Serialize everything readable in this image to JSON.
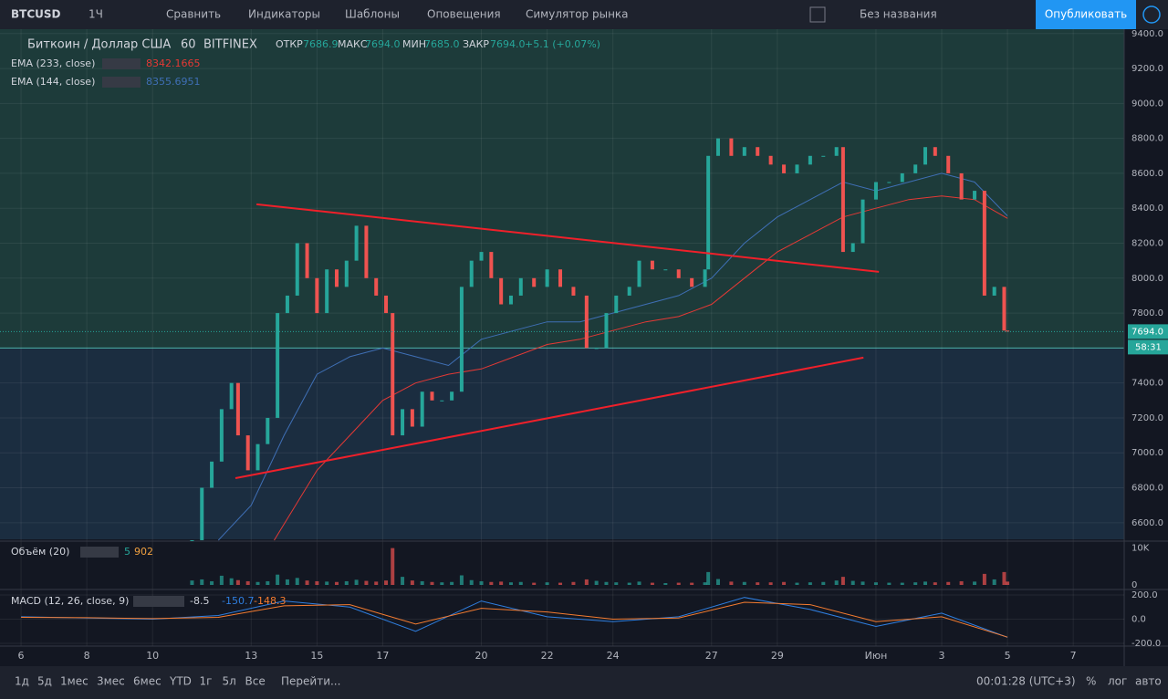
{
  "toolbar": {
    "symbol": "BTCUSD",
    "interval": "1Ч",
    "buttons": [
      "Сравнить",
      "Индикаторы",
      "Шаблоны",
      "Оповещения",
      "Симулятор рынка"
    ],
    "layout_name": "Без названия",
    "publish": "Опубликовать"
  },
  "legend": {
    "title": "Биткоин / Доллар США",
    "interval": "60",
    "exchange": "BITFINEX",
    "ohlc": [
      {
        "label": "ОТКР",
        "value": "7686.9"
      },
      {
        "label": "МАКС",
        "value": "7694.0"
      },
      {
        "label": "МИН",
        "value": "7685.0"
      },
      {
        "label": "ЗАКР",
        "value": "7694.0"
      }
    ],
    "change": "+5.1 (+0.07%)"
  },
  "chart_data": {
    "type": "candlestick",
    "xlim": [
      -0.64,
      33.55
    ],
    "ylim": [
      6505,
      9425
    ],
    "xticks": [
      {
        "value": 0,
        "label": "6"
      },
      {
        "value": 2,
        "label": "8"
      },
      {
        "value": 4,
        "label": "10"
      },
      {
        "value": 7,
        "label": "13"
      },
      {
        "value": 9,
        "label": "15"
      },
      {
        "value": 11,
        "label": "17"
      },
      {
        "value": 14,
        "label": "20"
      },
      {
        "value": 16,
        "label": "22"
      },
      {
        "value": 18,
        "label": "24"
      },
      {
        "value": 21,
        "label": "27"
      },
      {
        "value": 23,
        "label": "29"
      },
      {
        "value": 26,
        "label": "Июн"
      },
      {
        "value": 28,
        "label": "3"
      },
      {
        "value": 30,
        "label": "5"
      },
      {
        "value": 32,
        "label": "7"
      }
    ],
    "yticks": [
      {
        "value": 9400,
        "label": "9400.0"
      },
      {
        "value": 9200,
        "label": "9200.0"
      },
      {
        "value": 9000,
        "label": "9000.0"
      },
      {
        "value": 8800,
        "label": "8800.0"
      },
      {
        "value": 8600,
        "label": "8600.0"
      },
      {
        "value": 8400,
        "label": "8400.0"
      },
      {
        "value": 8200,
        "label": "8200.0"
      },
      {
        "value": 8000,
        "label": "8000.0"
      },
      {
        "value": 7800,
        "label": "7800.0"
      },
      {
        "value": 7600,
        "label": "7600.0"
      },
      {
        "value": 7400,
        "label": "7400.0"
      },
      {
        "value": 7200,
        "label": "7200.0"
      },
      {
        "value": 7000,
        "label": "7000.0"
      },
      {
        "value": 6800,
        "label": "6800.0"
      },
      {
        "value": 6600,
        "label": "6600.0"
      }
    ],
    "grid": true,
    "up_color": "#26a69a",
    "down_color": "#ef5350",
    "zone_level": 7600,
    "zone_colors": [
      "#1d3b3a",
      "#1b2d40"
    ],
    "last_price": {
      "value": 7694,
      "label": "7694.0"
    },
    "countdown": "58:31",
    "x": [
      5.2,
      5.5,
      5.8,
      6.1,
      6.4,
      6.6,
      6.9,
      7.2,
      7.5,
      7.8,
      8.1,
      8.4,
      8.7,
      9.0,
      9.3,
      9.6,
      9.9,
      10.2,
      10.5,
      10.8,
      11.1,
      11.3,
      11.6,
      11.9,
      12.2,
      12.5,
      12.8,
      13.1,
      13.4,
      13.7,
      14.0,
      14.3,
      14.6,
      14.9,
      15.2,
      15.6,
      16.0,
      16.4,
      16.8,
      17.2,
      17.5,
      17.8,
      18.1,
      18.5,
      18.8,
      19.2,
      19.6,
      20.0,
      20.4,
      20.8,
      20.9,
      21.2,
      21.6,
      22.0,
      22.4,
      22.8,
      23.2,
      23.6,
      24.0,
      24.4,
      24.8,
      25.0,
      25.3,
      25.6,
      26.0,
      26.4,
      26.8,
      27.2,
      27.5,
      27.8,
      28.2,
      28.6,
      29.0,
      29.3,
      29.6,
      29.9,
      30.0
    ],
    "values": [
      6500,
      6800,
      6950,
      7250,
      7400,
      7100,
      6900,
      7050,
      7200,
      7800,
      7900,
      8200,
      8000,
      7800,
      8050,
      7950,
      8100,
      8300,
      8000,
      7900,
      7800,
      7100,
      7250,
      7150,
      7350,
      7300,
      7300,
      7350,
      7950,
      8100,
      8150,
      8000,
      7850,
      7900,
      8000,
      7950,
      8050,
      7950,
      7900,
      7600,
      7600,
      7800,
      7900,
      7950,
      8100,
      8050,
      8050,
      8000,
      7950,
      8050,
      8700,
      8800,
      8700,
      8750,
      8700,
      8650,
      8600,
      8650,
      8700,
      8700,
      8750,
      8150,
      8200,
      8450,
      8550,
      8550,
      8600,
      8650,
      8750,
      8700,
      8600,
      8450,
      8500,
      7900,
      7950,
      7700,
      7694
    ],
    "volume": {
      "name": "Объём (20)",
      "ylim": [
        0,
        10.9
      ],
      "yticks": [
        {
          "value": 10,
          "label": "10K"
        },
        0
      ],
      "last_label": "5",
      "last": 902,
      "values": [
        1.2,
        1.5,
        1.0,
        2.5,
        1.8,
        1.3,
        1.0,
        0.8,
        1.0,
        2.8,
        1.5,
        1.9,
        1.2,
        1.0,
        0.9,
        0.8,
        1.0,
        1.4,
        1.1,
        0.9,
        1.2,
        10.0,
        2.2,
        1.2,
        1.0,
        0.8,
        0.7,
        0.8,
        2.6,
        1.3,
        1.0,
        0.8,
        0.9,
        0.7,
        0.8,
        0.6,
        0.7,
        0.6,
        0.8,
        1.5,
        1.1,
        0.8,
        0.7,
        0.6,
        0.9,
        0.6,
        0.5,
        0.6,
        0.6,
        0.7,
        3.5,
        1.6,
        0.9,
        0.8,
        0.7,
        0.7,
        0.8,
        0.6,
        0.7,
        0.8,
        1.2,
        2.2,
        1.1,
        0.9,
        0.7,
        0.6,
        0.6,
        0.7,
        0.9,
        0.7,
        0.8,
        1.0,
        0.9,
        3.0,
        1.5,
        3.5,
        0.902
      ]
    },
    "ema": [
      {
        "name": "EMA (233, close)",
        "last": 8342.1665,
        "color": "#e53935",
        "x": [
          7.7,
          9,
          10,
          11,
          12,
          13,
          14,
          15,
          16,
          17,
          18,
          19,
          20,
          21,
          22,
          23,
          24,
          25,
          26,
          27,
          28,
          29,
          30
        ],
        "values": [
          6500,
          6900,
          7100,
          7300,
          7400,
          7450,
          7480,
          7550,
          7620,
          7650,
          7700,
          7750,
          7780,
          7850,
          8000,
          8150,
          8250,
          8350,
          8400,
          8450,
          8470,
          8450,
          8342
        ]
      },
      {
        "name": "EMA (144, close)",
        "last": 8355.6951,
        "color": "#3f6fb5",
        "x": [
          6,
          7,
          8,
          9,
          10,
          11,
          12,
          13,
          14,
          15,
          16,
          17,
          18,
          19,
          20,
          21,
          22,
          23,
          24,
          25,
          26,
          27,
          28,
          29,
          30
        ],
        "values": [
          6500,
          6700,
          7100,
          7450,
          7550,
          7600,
          7550,
          7500,
          7650,
          7700,
          7750,
          7750,
          7800,
          7850,
          7900,
          8000,
          8200,
          8350,
          8450,
          8550,
          8500,
          8550,
          8600,
          8550,
          8356
        ]
      }
    ],
    "trendlines": [
      {
        "x": [
          7.16,
          26.09
        ],
        "y": [
          8423,
          8036
        ],
        "color": "#f0202a"
      },
      {
        "x": [
          6.52,
          25.62
        ],
        "y": [
          6855,
          7545
        ],
        "color": "#f0202a"
      }
    ],
    "macd": {
      "name": "MACD (12, 26, close, 9)",
      "labels": [
        "-8.5",
        "-150.7",
        "-148.3"
      ],
      "ylim": [
        -222,
        238
      ],
      "yticks": [
        {
          "value": 200,
          "label": "200.0"
        },
        {
          "value": 0,
          "label": "0.0"
        },
        {
          "value": -200,
          "label": "-200.0"
        }
      ],
      "x": [
        0,
        2,
        4,
        6,
        8,
        10,
        12,
        14,
        16,
        18,
        20,
        22,
        24,
        26,
        28,
        30
      ],
      "series": [
        {
          "color": "#2f7fe0",
          "values": [
            20,
            10,
            0,
            30,
            150,
            100,
            -100,
            150,
            20,
            -20,
            20,
            180,
            80,
            -60,
            50,
            -150
          ]
        },
        {
          "color": "#f57c30",
          "values": [
            15,
            12,
            5,
            15,
            110,
            120,
            -40,
            90,
            60,
            0,
            10,
            140,
            120,
            -20,
            20,
            -148
          ]
        }
      ]
    }
  },
  "bottom": {
    "ranges": [
      "1д",
      "5д",
      "1мес",
      "3мес",
      "6мес",
      "YTD",
      "1г",
      "5л",
      "Все"
    ],
    "goto": "Перейти...",
    "clock": "00:01:28 (UTC+3)",
    "options": [
      "%",
      "лог",
      "авто"
    ]
  }
}
